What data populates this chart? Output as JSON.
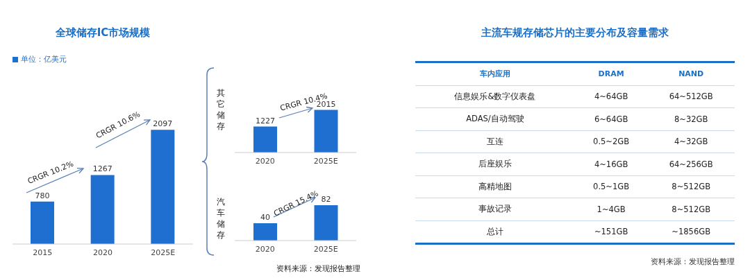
{
  "chart_data": [
    {
      "type": "bar",
      "title": "全球储存IC市场规模",
      "categories": [
        "2015",
        "2020",
        "2025E"
      ],
      "series": [
        {
          "name": "单位：亿美元",
          "color": "#1f6fd1",
          "values": [
            780,
            1267,
            2097
          ]
        }
      ],
      "data_labels": true,
      "legend": "top left",
      "annotations": [
        "CRGR 10.2%",
        "CRGR 10.6%"
      ]
    },
    {
      "type": "bar",
      "ylabel": "其它储存",
      "categories": [
        "2020",
        "2025E"
      ],
      "series": [
        {
          "color": "#1f6fd1",
          "values": [
            1227,
            2015
          ]
        }
      ],
      "data_labels": true,
      "annotations": [
        "CRGR 10.4%"
      ]
    },
    {
      "type": "bar",
      "ylabel": "汽车储存",
      "categories": [
        "2020",
        "2025E"
      ],
      "series": [
        {
          "color": "#1f6fd1",
          "values": [
            40,
            82
          ]
        }
      ],
      "data_labels": true,
      "annotations": [
        "CRGR 15.4%",
        "资料来源：发现报告整理"
      ]
    },
    {
      "type": "other",
      "title": "主流车规存储芯片的主要分布及容量需求",
      "categories": [
        "车内应用",
        "DRAM",
        "NAND"
      ],
      "y_categories": [
        "信息娱乐&数字仪表盘",
        "ADAS/自动驾驶",
        "互连",
        "后座娱乐",
        "高精地图",
        "事故记录",
        "总计"
      ],
      "cell_labels": [
        [
          "4~64GB",
          "64~512GB"
        ],
        [
          "6~64GB",
          "8~32GB"
        ],
        [
          "0.5~2GB",
          "4~32GB"
        ],
        [
          "4~16GB",
          "64~256GB"
        ],
        [
          "0.5~1GB",
          "8~512GB"
        ],
        [
          "1~4GB",
          "8~512GB"
        ],
        [
          "~151GB",
          "~1856GB"
        ]
      ],
      "annotations": [
        "资料来源：发现报告整理"
      ]
    }
  ]
}
